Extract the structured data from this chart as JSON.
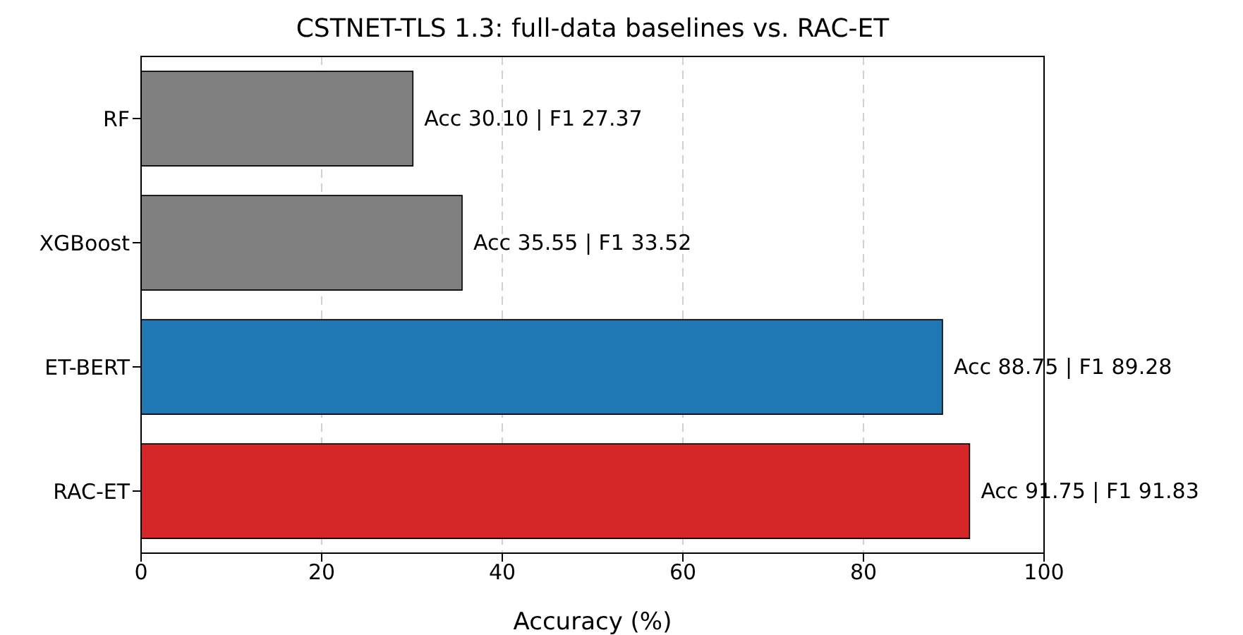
{
  "chart_data": {
    "type": "bar",
    "orientation": "horizontal",
    "title": "CSTNET-TLS 1.3: full-data baselines vs. RAC-ET",
    "xlabel": "Accuracy (%)",
    "categories": [
      "RF",
      "XGBoost",
      "ET-BERT",
      "RAC-ET"
    ],
    "values": [
      30.1,
      35.55,
      88.75,
      91.75
    ],
    "colors": [
      "#808080",
      "#808080",
      "#1f77b4",
      "#d62728"
    ],
    "value_labels": [
      "Acc 30.10 | F1 27.37",
      "Acc 35.55 | F1 33.52",
      "Acc 88.75 | F1 89.28",
      "Acc 91.75 | F1 91.83"
    ],
    "xlim": [
      0,
      100
    ],
    "xticks": [
      0,
      20,
      40,
      60,
      80,
      100
    ],
    "grid": "x"
  }
}
